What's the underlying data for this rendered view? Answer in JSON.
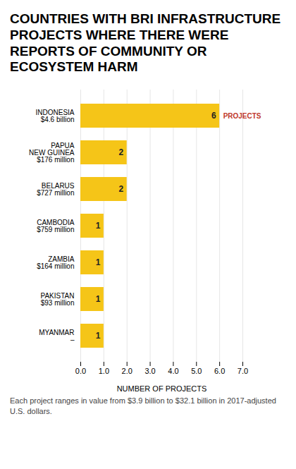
{
  "chart_data": {
    "type": "bar",
    "orientation": "horizontal",
    "title": "COUNTRIES WITH BRI INFRASTRUCTURE PROJECTS WHERE THERE WERE REPORTS OF COMMUNITY OR ECOSYSTEM HARM",
    "caption": "Each project ranges in value from $3.9 billion to $32.1 billion in 2017-adjusted U.S. dollars.",
    "categories": [
      "INDONESIA",
      "PAPUA\nNEW GUINEA",
      "BELARUS",
      "CAMBODIA",
      "ZAMBIA",
      "PAKISTAN",
      "MYANMAR"
    ],
    "amounts": [
      "$4.6 billion",
      "$176 million",
      "$727 million",
      "$759 million",
      "$164 million",
      "$93 million",
      "–"
    ],
    "values": [
      6,
      2,
      2,
      1,
      1,
      1,
      1
    ],
    "color": "#F5C518",
    "xlabel": "NUMBER OF PROJECTS",
    "xlim": [
      0,
      7
    ],
    "xticks": [
      0,
      1,
      2,
      3,
      4,
      5,
      6,
      7
    ],
    "grid": true,
    "data_labels": true,
    "annotations": [
      {
        "category": "INDONESIA",
        "text": "PROJECTS"
      }
    ]
  }
}
